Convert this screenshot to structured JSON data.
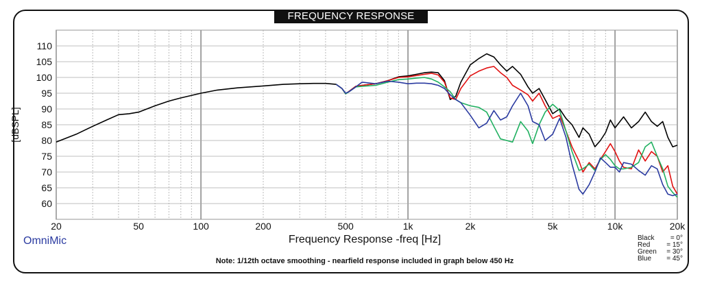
{
  "chart_data": {
    "type": "line",
    "title": "FREQUENCY RESPONSE",
    "xlabel": "Frequency Response -freq [Hz]",
    "ylabel": "[dBSPL]",
    "xscale": "log",
    "xlim": [
      20,
      20000
    ],
    "ylim": [
      55,
      115
    ],
    "grid": true,
    "x_tick_labels": [
      "20",
      "50",
      "100",
      "200",
      "500",
      "1k",
      "2k",
      "5k",
      "10k",
      "20k"
    ],
    "x_ticks": [
      20,
      50,
      100,
      200,
      500,
      1000,
      2000,
      5000,
      10000,
      20000
    ],
    "y_ticks": [
      60,
      65,
      70,
      75,
      80,
      85,
      90,
      95,
      100,
      105,
      110
    ],
    "series": [
      {
        "name": "Black",
        "color": "#000000",
        "x": [
          20,
          25,
          30,
          35,
          40,
          45,
          50,
          60,
          70,
          80,
          100,
          120,
          150,
          200,
          250,
          300,
          350,
          400,
          450,
          480,
          500,
          520,
          560,
          600,
          700,
          800,
          900,
          1000,
          1100,
          1200,
          1300,
          1400,
          1500,
          1600,
          1700,
          1800,
          2000,
          2200,
          2400,
          2600,
          2800,
          3000,
          3200,
          3500,
          3800,
          4000,
          4300,
          4600,
          5000,
          5400,
          5800,
          6200,
          6700,
          7000,
          7500,
          8000,
          8500,
          9000,
          9500,
          10000,
          11000,
          12000,
          13000,
          14000,
          15000,
          16000,
          17000,
          18000,
          19000,
          20000
        ],
        "y": [
          79.5,
          82,
          84.5,
          86.5,
          88.2,
          88.5,
          89,
          91,
          92.5,
          93.5,
          95,
          96,
          96.7,
          97.3,
          97.8,
          98,
          98.1,
          98.1,
          97.8,
          96.5,
          94.8,
          95.6,
          97.2,
          97.5,
          98,
          99,
          100.2,
          100.5,
          101,
          101.5,
          101.7,
          101.5,
          99,
          93,
          94,
          98.5,
          104,
          106,
          107.5,
          106.5,
          104,
          102,
          103.5,
          101,
          97,
          95,
          96.5,
          93,
          88.5,
          90,
          87,
          85,
          81,
          84,
          82,
          78,
          80,
          82.5,
          86.5,
          84,
          87.5,
          84,
          86,
          89,
          86,
          84.5,
          86,
          81,
          78,
          78.5
        ]
      },
      {
        "name": "Red",
        "color": "#e11010",
        "x": [
          450,
          480,
          500,
          520,
          560,
          600,
          700,
          800,
          900,
          1000,
          1100,
          1200,
          1300,
          1400,
          1500,
          1600,
          1700,
          1800,
          2000,
          2200,
          2400,
          2600,
          2800,
          3000,
          3200,
          3500,
          3800,
          4000,
          4300,
          4600,
          5000,
          5400,
          5800,
          6200,
          6700,
          7000,
          7500,
          8000,
          8500,
          9000,
          9500,
          10000,
          10500,
          11000,
          12000,
          13000,
          14000,
          15000,
          16000,
          17000,
          18000,
          19000,
          20000
        ],
        "y": [
          97.8,
          96.5,
          94.8,
          95.6,
          97.2,
          97.5,
          98,
          99,
          100,
          100.2,
          100.6,
          101,
          101.3,
          100.8,
          98.5,
          93.5,
          93,
          96.5,
          100.5,
          102,
          103,
          103.5,
          101.5,
          100,
          97.5,
          96,
          94.5,
          92.5,
          95,
          91,
          87,
          88,
          83,
          78,
          73.5,
          70,
          73,
          71,
          74,
          76.5,
          79,
          76.5,
          73.5,
          71.5,
          71,
          77,
          73.5,
          76.5,
          75,
          70,
          72,
          65.5,
          63
        ]
      },
      {
        "name": "Green",
        "color": "#20b060",
        "x": [
          450,
          480,
          500,
          520,
          560,
          600,
          700,
          800,
          900,
          1000,
          1100,
          1200,
          1300,
          1400,
          1500,
          1600,
          1700,
          1800,
          2000,
          2200,
          2400,
          2600,
          2800,
          3000,
          3200,
          3500,
          3800,
          4000,
          4300,
          4600,
          5000,
          5400,
          5800,
          6200,
          6700,
          7000,
          7500,
          8000,
          8500,
          9000,
          9500,
          10000,
          10500,
          11000,
          12000,
          13000,
          14000,
          15000,
          16000,
          17000,
          18000,
          19000,
          20000
        ],
        "y": [
          97.8,
          96.5,
          94.8,
          95.5,
          97,
          97.2,
          97.5,
          98.5,
          99.3,
          99.5,
          99.8,
          100,
          99.5,
          98.5,
          97,
          95.5,
          93,
          92,
          91,
          90.5,
          89,
          84.5,
          80.5,
          80,
          79.5,
          86,
          83,
          79,
          85,
          89,
          91.5,
          89.5,
          83,
          76.5,
          70.5,
          71,
          72.5,
          70.5,
          74,
          75.5,
          74,
          72,
          71,
          71,
          71.5,
          73,
          78,
          79.5,
          75,
          71,
          65.5,
          63.5,
          62
        ]
      },
      {
        "name": "Blue",
        "color": "#2a3aa0",
        "x": [
          450,
          480,
          500,
          520,
          560,
          600,
          700,
          800,
          900,
          1000,
          1100,
          1200,
          1300,
          1400,
          1500,
          1600,
          1700,
          1800,
          2000,
          2200,
          2400,
          2600,
          2800,
          3000,
          3200,
          3500,
          3800,
          4000,
          4300,
          4600,
          5000,
          5400,
          5800,
          6200,
          6700,
          7000,
          7500,
          8000,
          8500,
          9000,
          9500,
          10000,
          10500,
          11000,
          12000,
          13000,
          14000,
          15000,
          16000,
          17000,
          18000,
          19000,
          20000
        ],
        "y": [
          97.8,
          96.5,
          95,
          95.5,
          97,
          98.5,
          98,
          98.8,
          98.5,
          98,
          98.2,
          98.2,
          98,
          97.5,
          96.5,
          94.5,
          93,
          92,
          88,
          84,
          85.5,
          89.5,
          86.5,
          87.5,
          91,
          95,
          91,
          86,
          85,
          80,
          82,
          87,
          81,
          72.5,
          64.5,
          63,
          66,
          70,
          74.5,
          73,
          71.5,
          71.5,
          70,
          73,
          72.5,
          70.5,
          69,
          72,
          71,
          66,
          63,
          62.5,
          63
        ]
      }
    ]
  },
  "brand": "OmniMic",
  "note": "Note: 1/12th octave smoothing - nearfield response included in graph below 450 Hz",
  "legend": [
    {
      "name": "Black",
      "angle": "=  0°"
    },
    {
      "name": "Red",
      "angle": "= 15°"
    },
    {
      "name": "Green",
      "angle": "= 30°"
    },
    {
      "name": "Blue",
      "angle": "= 45°"
    }
  ]
}
